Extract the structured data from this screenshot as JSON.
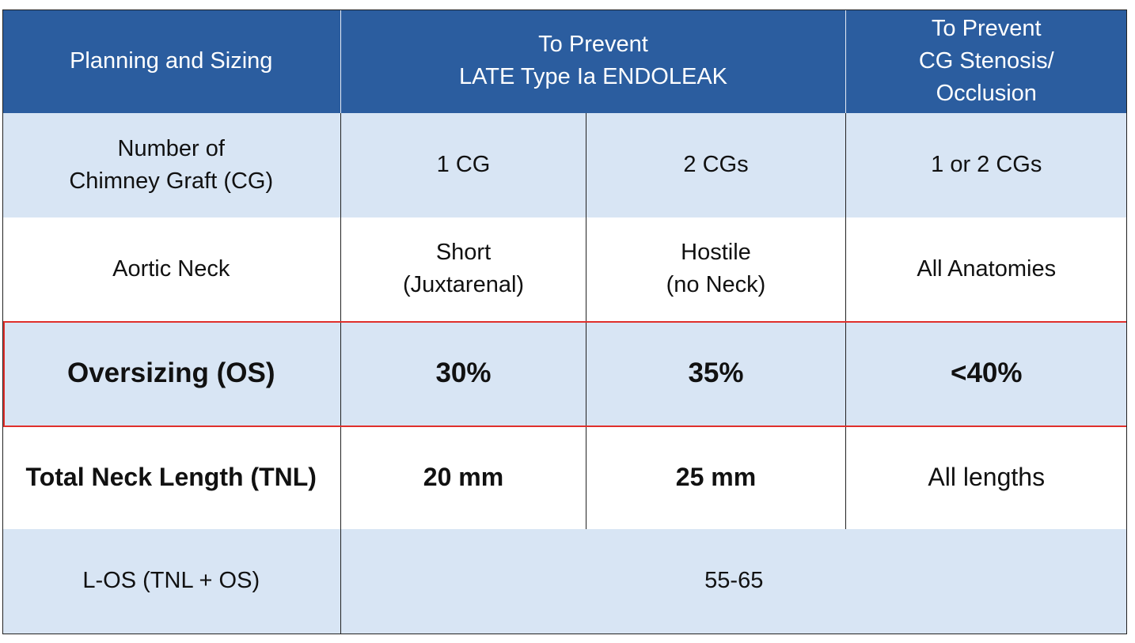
{
  "header": {
    "col0": "Planning and Sizing",
    "col1_line1": "To Prevent",
    "col1_line2": "LATE Type Ia ENDOLEAK",
    "col3_line1": "To Prevent",
    "col3_line2": "CG Stenosis/",
    "col3_line3": "Occlusion"
  },
  "rows": {
    "cg": {
      "label_line1": "Number of",
      "label_line2": "Chimney Graft (CG)",
      "c1": "1 CG",
      "c2": "2 CGs",
      "c3": "1 or 2 CGs"
    },
    "neck": {
      "label": "Aortic Neck",
      "c1_line1": "Short",
      "c1_line2": "(Juxtarenal)",
      "c2_line1": "Hostile",
      "c2_line2": "(no Neck)",
      "c3": "All Anatomies"
    },
    "os": {
      "label": "Oversizing (OS)",
      "c1": "30%",
      "c2": "35%",
      "c3": "<40%"
    },
    "tnl": {
      "label": "Total Neck Length (TNL)",
      "c1": "20 mm",
      "c2": "25 mm",
      "c3": "All lengths"
    },
    "los": {
      "label": "L-OS (TNL + OS)",
      "value": "55-65"
    }
  },
  "colors": {
    "header_bg": "#2b5d9f",
    "shade_bg": "#d8e5f4",
    "highlight_border": "#e0302c"
  }
}
